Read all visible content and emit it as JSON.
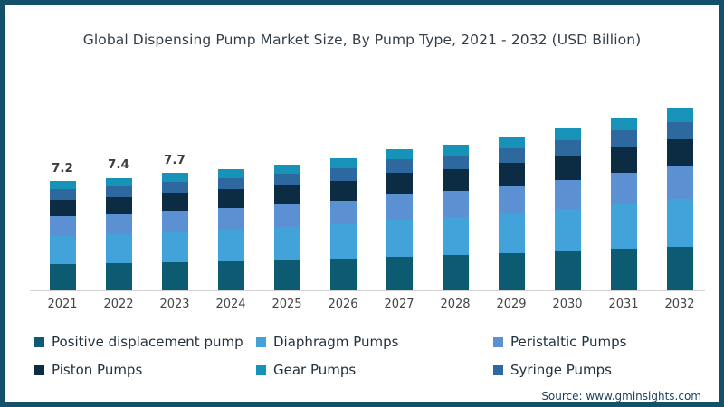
{
  "frame": {
    "border_color": "#15506b",
    "background_color": "#ffffff"
  },
  "title": "Global Dispensing Pump Market Size, By Pump Type, 2021 - 2032 (USD Billion)",
  "source": "Source: www.gminsights.com",
  "chart_data": {
    "type": "bar",
    "stacked": true,
    "unit": "USD Billion",
    "title": "Global Dispensing Pump Market Size, By Pump Type, 2021 - 2032 (USD Billion)",
    "xlabel": "",
    "ylabel": "",
    "grid": false,
    "legend_position": "bottom",
    "categories": [
      "2021",
      "2022",
      "2023",
      "2024",
      "2025",
      "2026",
      "2027",
      "2028",
      "2029",
      "2030",
      "2031",
      "2032"
    ],
    "totals": [
      7.2,
      7.4,
      7.7,
      8.0,
      8.3,
      8.7,
      9.3,
      9.6,
      10.1,
      10.7,
      11.4,
      12.0
    ],
    "value_labels": {
      "2021": "7.2",
      "2022": "7.4",
      "2023": "7.7"
    },
    "series": [
      {
        "name": "Positive displacement pump",
        "color": "#0d5a73",
        "values": [
          1.73,
          1.78,
          1.85,
          1.92,
          1.99,
          2.09,
          2.23,
          2.3,
          2.42,
          2.57,
          2.74,
          2.88
        ]
      },
      {
        "name": "Diaphragm Pumps",
        "color": "#41a3da",
        "values": [
          1.87,
          1.92,
          2.0,
          2.08,
          2.16,
          2.26,
          2.42,
          2.5,
          2.63,
          2.78,
          2.96,
          3.12
        ]
      },
      {
        "name": "Peristaltic Pumps",
        "color": "#5b90d2",
        "values": [
          1.3,
          1.33,
          1.39,
          1.44,
          1.49,
          1.57,
          1.67,
          1.73,
          1.82,
          1.93,
          2.05,
          2.16
        ]
      },
      {
        "name": "Piston Pumps",
        "color": "#0b2c43",
        "values": [
          1.08,
          1.11,
          1.16,
          1.2,
          1.25,
          1.31,
          1.4,
          1.44,
          1.52,
          1.61,
          1.71,
          1.8
        ]
      },
      {
        "name": "Syringe Pumps",
        "color": "#2d699f",
        "values": [
          0.68,
          0.7,
          0.73,
          0.76,
          0.79,
          0.83,
          0.88,
          0.91,
          0.96,
          1.02,
          1.08,
          1.14
        ]
      },
      {
        "name": "Gear Pumps",
        "color": "#1792b9",
        "values": [
          0.54,
          0.56,
          0.58,
          0.6,
          0.62,
          0.65,
          0.7,
          0.72,
          0.76,
          0.8,
          0.86,
          0.9
        ]
      }
    ],
    "legend_rows": [
      [
        "Positive displacement pump",
        "Diaphragm Pumps",
        "Peristaltic Pumps"
      ],
      [
        "Piston Pumps",
        "Gear Pumps",
        "Syringe Pumps"
      ]
    ]
  }
}
